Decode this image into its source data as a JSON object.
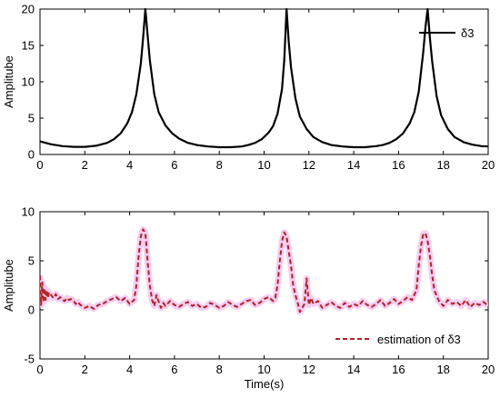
{
  "chart_data": [
    {
      "type": "line",
      "xlabel": "",
      "ylabel": "Amplitube",
      "xlim": [
        0,
        20
      ],
      "ylim": [
        0,
        20
      ],
      "xticks": [
        0,
        2,
        4,
        6,
        8,
        10,
        12,
        14,
        16,
        18,
        20
      ],
      "yticks": [
        0,
        5,
        10,
        15,
        20
      ],
      "grid": false,
      "legend_position": "top-right",
      "series": [
        {
          "name": "δ3",
          "color": "#000000",
          "style": "solid",
          "x": [
            0,
            0.5,
            1,
            1.5,
            2,
            2.5,
            3,
            3.3,
            3.6,
            3.9,
            4.1,
            4.3,
            4.5,
            4.6,
            4.7,
            4.8,
            4.9,
            5.1,
            5.3,
            5.6,
            5.9,
            6.2,
            6.6,
            7,
            7.5,
            8,
            8.5,
            9,
            9.3,
            9.6,
            9.9,
            10.2,
            10.4,
            10.6,
            10.8,
            10.9,
            11.0,
            11.1,
            11.2,
            11.4,
            11.6,
            11.9,
            12.2,
            12.6,
            13,
            13.5,
            14,
            14.5,
            15,
            15.3,
            15.6,
            15.9,
            16.2,
            16.5,
            16.7,
            16.9,
            17.1,
            17.2,
            17.3,
            17.4,
            17.5,
            17.7,
            17.9,
            18.2,
            18.5,
            18.9,
            19.3,
            19.7,
            20
          ],
          "y": [
            1.8,
            1.4,
            1.15,
            1.05,
            1.05,
            1.2,
            1.6,
            2.1,
            2.9,
            4.3,
            5.8,
            8.3,
            12.5,
            16,
            20,
            16.5,
            13,
            8.3,
            5.8,
            4.0,
            2.9,
            2.2,
            1.6,
            1.3,
            1.1,
            1.0,
            1.0,
            1.1,
            1.3,
            1.6,
            2.1,
            3.0,
            3.9,
            5.6,
            9.0,
            13,
            20,
            15.5,
            12,
            7.7,
            5.2,
            3.5,
            2.4,
            1.7,
            1.3,
            1.1,
            1.0,
            1.0,
            1.15,
            1.3,
            1.6,
            2.1,
            2.9,
            4.3,
            5.8,
            8.6,
            14,
            17.5,
            20,
            16,
            12.8,
            8.0,
            5.4,
            3.5,
            2.4,
            1.7,
            1.35,
            1.15,
            1.1
          ]
        }
      ]
    },
    {
      "type": "line",
      "xlabel": "Time(s)",
      "ylabel": "Amplitube",
      "xlim": [
        0,
        20
      ],
      "ylim": [
        -5,
        10
      ],
      "xticks": [
        0,
        2,
        4,
        6,
        8,
        10,
        12,
        14,
        16,
        18,
        20
      ],
      "yticks": [
        -5,
        0,
        5,
        10
      ],
      "grid": false,
      "legend_position": "bottom-right",
      "series": [
        {
          "name": "estimation of δ3",
          "color": "#b22222",
          "style": "dashed",
          "band_color": "#f3c2f0",
          "x": [
            0,
            0.05,
            0.1,
            0.15,
            0.2,
            0.25,
            0.3,
            0.35,
            0.4,
            0.5,
            0.6,
            0.7,
            0.8,
            0.9,
            1.0,
            1.1,
            1.2,
            1.3,
            1.4,
            1.5,
            1.6,
            1.7,
            1.8,
            2.0,
            2.2,
            2.4,
            2.6,
            2.8,
            3.0,
            3.2,
            3.4,
            3.6,
            3.8,
            4.0,
            4.2,
            4.3,
            4.4,
            4.5,
            4.6,
            4.7,
            4.75,
            4.8,
            4.9,
            5.0,
            5.1,
            5.2,
            5.3,
            5.4,
            5.5,
            5.6,
            5.8,
            6.0,
            6.2,
            6.4,
            6.6,
            6.8,
            7.0,
            7.2,
            7.4,
            7.6,
            7.8,
            8.0,
            8.2,
            8.4,
            8.6,
            8.8,
            9.0,
            9.2,
            9.4,
            9.6,
            9.8,
            10.0,
            10.2,
            10.4,
            10.5,
            10.6,
            10.7,
            10.8,
            10.9,
            11.0,
            11.1,
            11.2,
            11.3,
            11.4,
            11.5,
            11.6,
            11.8,
            11.9,
            12.0,
            12.1,
            12.2,
            12.4,
            12.6,
            12.8,
            13.0,
            13.2,
            13.4,
            13.6,
            13.8,
            14.0,
            14.2,
            14.4,
            14.6,
            14.8,
            15.0,
            15.2,
            15.4,
            15.6,
            15.8,
            16.0,
            16.2,
            16.4,
            16.6,
            16.8,
            16.9,
            17.0,
            17.1,
            17.2,
            17.3,
            17.4,
            17.5,
            17.6,
            17.8,
            18.0,
            18.2,
            18.4,
            18.6,
            18.8,
            19.0,
            19.2,
            19.4,
            19.6,
            19.8,
            20.0
          ],
          "y": [
            3.5,
            0.5,
            2.8,
            0.8,
            2.2,
            1.0,
            2.0,
            1.2,
            1.8,
            1.5,
            1.2,
            1.6,
            1.1,
            1.3,
            1.0,
            0.9,
            1.2,
            1.0,
            1.1,
            0.9,
            0.6,
            0.8,
            0.5,
            0.2,
            0.4,
            0.1,
            0.5,
            0.6,
            0.9,
            1.1,
            1.3,
            0.9,
            1.2,
            0.6,
            1.0,
            2.5,
            5.5,
            7.5,
            8.2,
            7.8,
            6.5,
            5.0,
            2.5,
            1.0,
            0.4,
            1.5,
            0.8,
            0.2,
            0.7,
            0.4,
            0.9,
            0.5,
            0.3,
            0.6,
            0.8,
            0.4,
            0.6,
            0.2,
            0.3,
            0.7,
            0.5,
            0.2,
            0.4,
            0.8,
            0.5,
            0.3,
            0.6,
            0.9,
            1.0,
            0.5,
            0.7,
            1.1,
            1.3,
            0.9,
            1.2,
            2.5,
            5.0,
            7.0,
            7.9,
            7.5,
            6.0,
            4.5,
            2.5,
            1.5,
            0.7,
            -0.2,
            0.6,
            3.2,
            0.5,
            1.2,
            0.6,
            0.9,
            0.2,
            0.5,
            0.8,
            0.4,
            0.2,
            0.7,
            0.3,
            0.6,
            0.4,
            0.9,
            0.5,
            0.3,
            0.6,
            1.0,
            0.4,
            0.7,
            1.1,
            0.6,
            0.9,
            1.3,
            1.0,
            2.0,
            4.5,
            6.5,
            7.7,
            7.8,
            7.0,
            5.5,
            3.5,
            2.0,
            0.9,
            0.4,
            1.0,
            0.6,
            0.8,
            0.4,
            1.0,
            0.3,
            0.7,
            0.5,
            0.8,
            0.4
          ]
        }
      ]
    }
  ]
}
